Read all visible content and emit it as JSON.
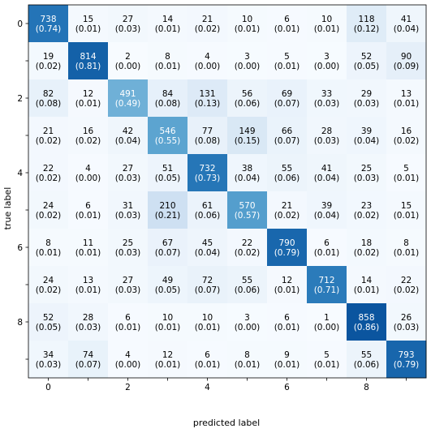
{
  "chart_data": {
    "type": "heatmap",
    "title": "",
    "xlabel": "predicted label",
    "ylabel": "true label",
    "x_tick_labels": [
      "0",
      "",
      "2",
      "",
      "4",
      "",
      "6",
      "",
      "8",
      ""
    ],
    "y_tick_labels": [
      "0",
      "",
      "2",
      "",
      "4",
      "",
      "6",
      "",
      "8",
      ""
    ],
    "colormap": {
      "low": "#f7fbff",
      "high": "#08306b"
    },
    "text_colors": {
      "dark": "#000000",
      "light": "#ffffff"
    },
    "value_range": [
      0,
      1
    ],
    "matrix": [
      [
        738,
        15,
        27,
        14,
        21,
        10,
        6,
        10,
        118,
        41
      ],
      [
        19,
        814,
        2,
        8,
        4,
        3,
        5,
        3,
        52,
        90
      ],
      [
        82,
        12,
        491,
        84,
        131,
        56,
        69,
        33,
        29,
        13
      ],
      [
        21,
        16,
        42,
        546,
        77,
        149,
        66,
        28,
        39,
        16
      ],
      [
        22,
        4,
        27,
        51,
        732,
        38,
        55,
        41,
        25,
        5
      ],
      [
        24,
        6,
        31,
        210,
        61,
        570,
        21,
        39,
        23,
        15
      ],
      [
        8,
        11,
        25,
        67,
        45,
        22,
        790,
        6,
        18,
        8
      ],
      [
        24,
        13,
        27,
        49,
        72,
        55,
        12,
        712,
        14,
        22
      ],
      [
        52,
        28,
        6,
        10,
        10,
        3,
        6,
        1,
        858,
        26
      ],
      [
        34,
        74,
        4,
        12,
        6,
        8,
        9,
        5,
        55,
        793
      ]
    ],
    "normalized": [
      [
        "(0.74)",
        "(0.01)",
        "(0.03)",
        "(0.01)",
        "(0.02)",
        "(0.01)",
        "(0.01)",
        "(0.01)",
        "(0.12)",
        "(0.04)"
      ],
      [
        "(0.02)",
        "(0.81)",
        "(0.00)",
        "(0.01)",
        "(0.00)",
        "(0.00)",
        "(0.01)",
        "(0.00)",
        "(0.05)",
        "(0.09)"
      ],
      [
        "(0.08)",
        "(0.01)",
        "(0.49)",
        "(0.08)",
        "(0.13)",
        "(0.06)",
        "(0.07)",
        "(0.03)",
        "(0.03)",
        "(0.01)"
      ],
      [
        "(0.02)",
        "(0.02)",
        "(0.04)",
        "(0.55)",
        "(0.08)",
        "(0.15)",
        "(0.07)",
        "(0.03)",
        "(0.04)",
        "(0.02)"
      ],
      [
        "(0.02)",
        "(0.00)",
        "(0.03)",
        "(0.05)",
        "(0.73)",
        "(0.04)",
        "(0.06)",
        "(0.04)",
        "(0.03)",
        "(0.01)"
      ],
      [
        "(0.02)",
        "(0.01)",
        "(0.03)",
        "(0.21)",
        "(0.06)",
        "(0.57)",
        "(0.02)",
        "(0.04)",
        "(0.02)",
        "(0.01)"
      ],
      [
        "(0.01)",
        "(0.01)",
        "(0.03)",
        "(0.07)",
        "(0.04)",
        "(0.02)",
        "(0.79)",
        "(0.01)",
        "(0.02)",
        "(0.01)"
      ],
      [
        "(0.02)",
        "(0.01)",
        "(0.03)",
        "(0.05)",
        "(0.07)",
        "(0.06)",
        "(0.01)",
        "(0.71)",
        "(0.01)",
        "(0.02)"
      ],
      [
        "(0.05)",
        "(0.03)",
        "(0.01)",
        "(0.01)",
        "(0.01)",
        "(0.00)",
        "(0.01)",
        "(0.00)",
        "(0.86)",
        "(0.03)"
      ],
      [
        "(0.03)",
        "(0.07)",
        "(0.00)",
        "(0.01)",
        "(0.01)",
        "(0.01)",
        "(0.01)",
        "(0.01)",
        "(0.06)",
        "(0.79)"
      ]
    ],
    "grid": false,
    "legend": "none"
  }
}
